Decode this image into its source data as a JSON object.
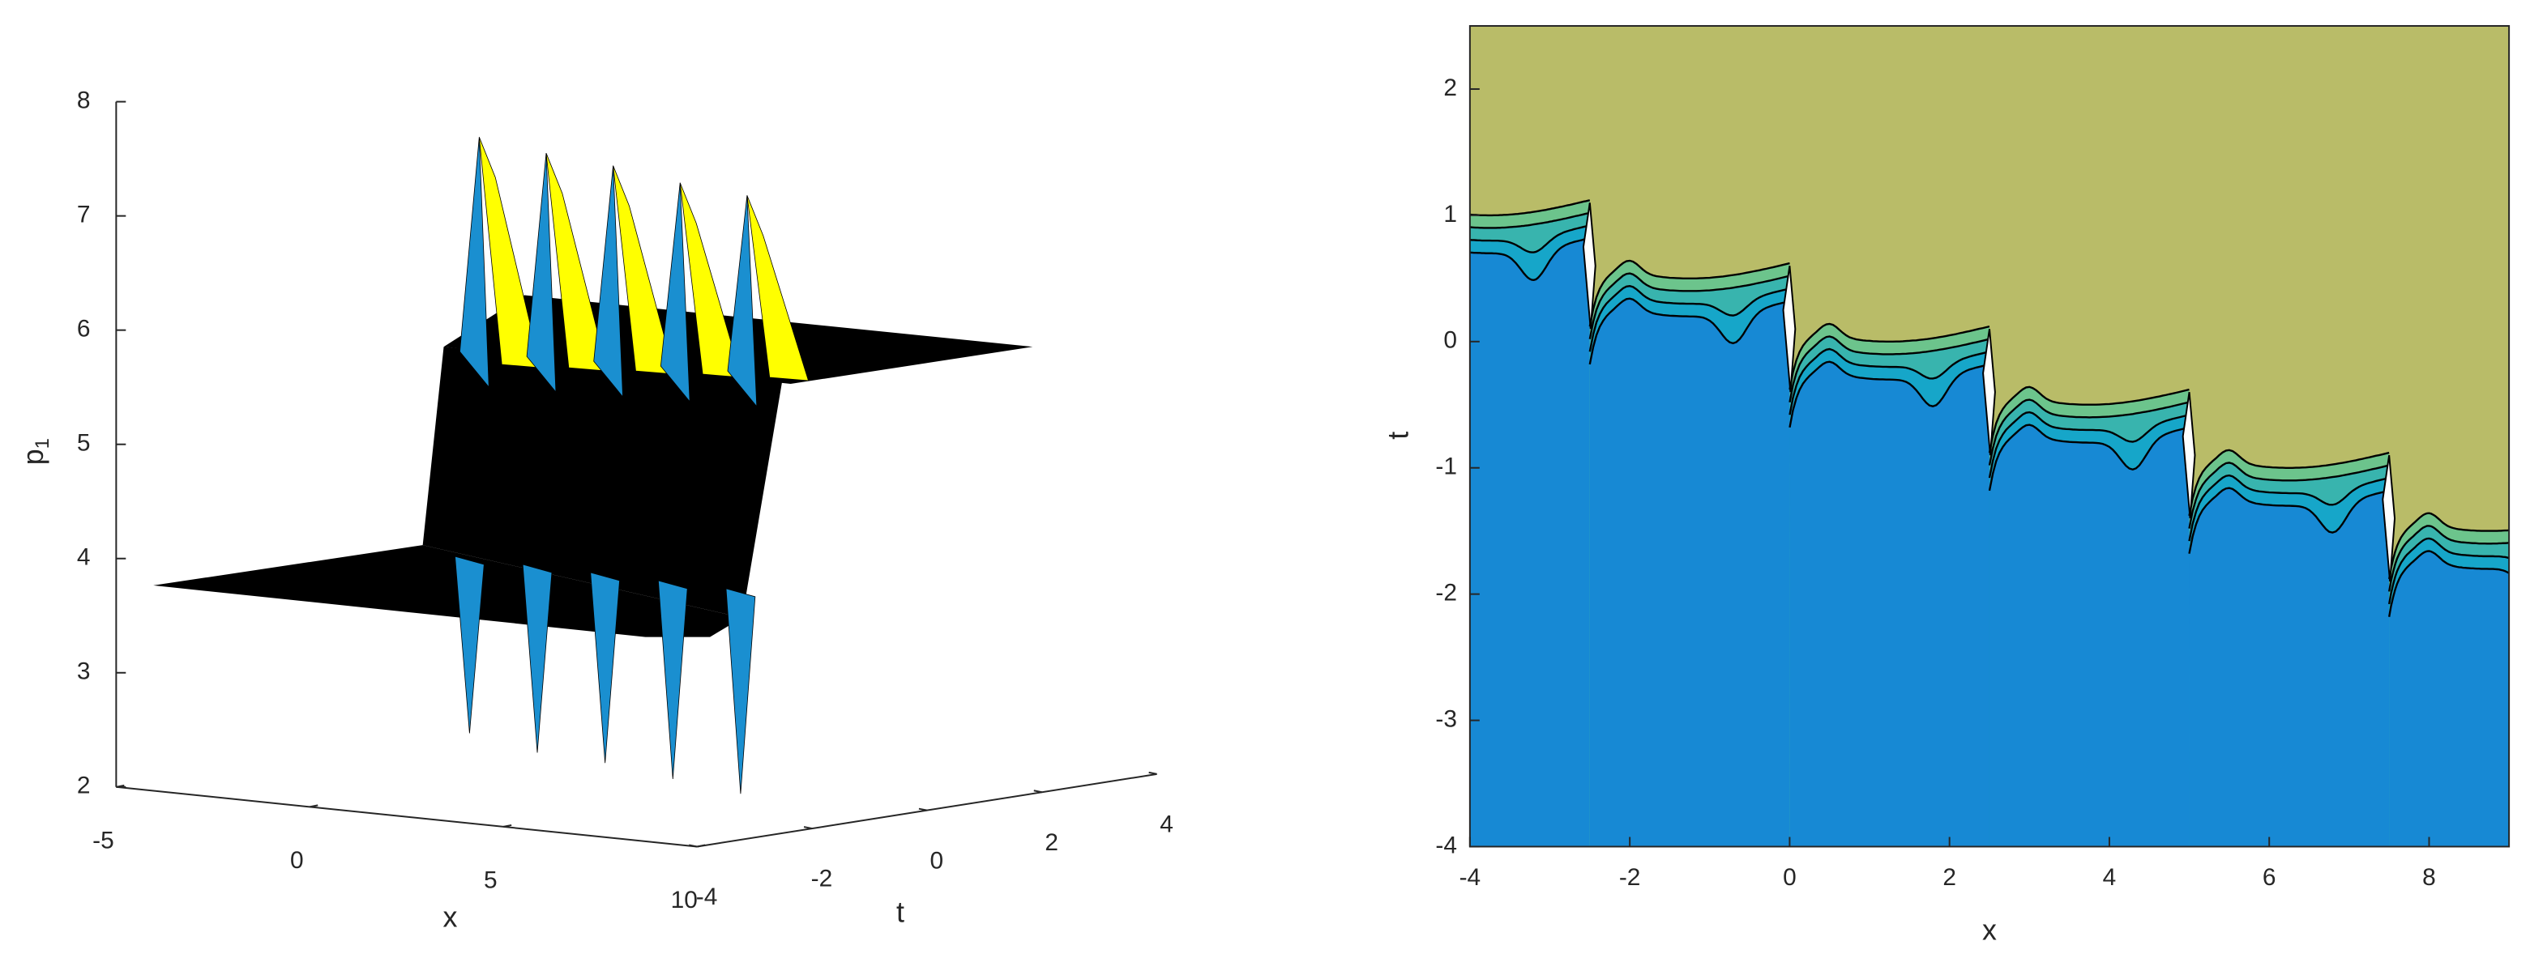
{
  "chart_data": [
    {
      "type": "surface",
      "xlabel": "x",
      "ylabel": "t",
      "zlabel": "p",
      "zlabel_subscript": "1",
      "xlim": [
        -5,
        10
      ],
      "xticks": [
        -5,
        0,
        5,
        10
      ],
      "ylim": [
        -4,
        4
      ],
      "yticks": [
        -4,
        -2,
        0,
        2,
        4
      ],
      "zlim": [
        2,
        8
      ],
      "zticks": [
        2,
        3,
        4,
        5,
        6,
        7,
        8
      ],
      "peaks": [
        7.69,
        7.55,
        7.44,
        7.29,
        7.18
      ],
      "troughs": [
        2.47,
        2.3,
        2.21,
        2.07,
        1.94
      ],
      "colors": {
        "peak": "#ffff00",
        "spike": "#1a8fd0"
      }
    },
    {
      "type": "contour",
      "xlabel": "x",
      "ylabel": "t",
      "xlim": [
        -4,
        9
      ],
      "xticks": [
        -4,
        -2,
        0,
        2,
        4,
        6,
        8
      ],
      "ylim": [
        -4,
        2.5
      ],
      "yticks": [
        -4,
        -3,
        -2,
        -1,
        0,
        1,
        2
      ],
      "colors": [
        "#b9bc68",
        "#6cc48c",
        "#38b4ae",
        "#16a6c9",
        "#1789d4"
      ]
    }
  ]
}
